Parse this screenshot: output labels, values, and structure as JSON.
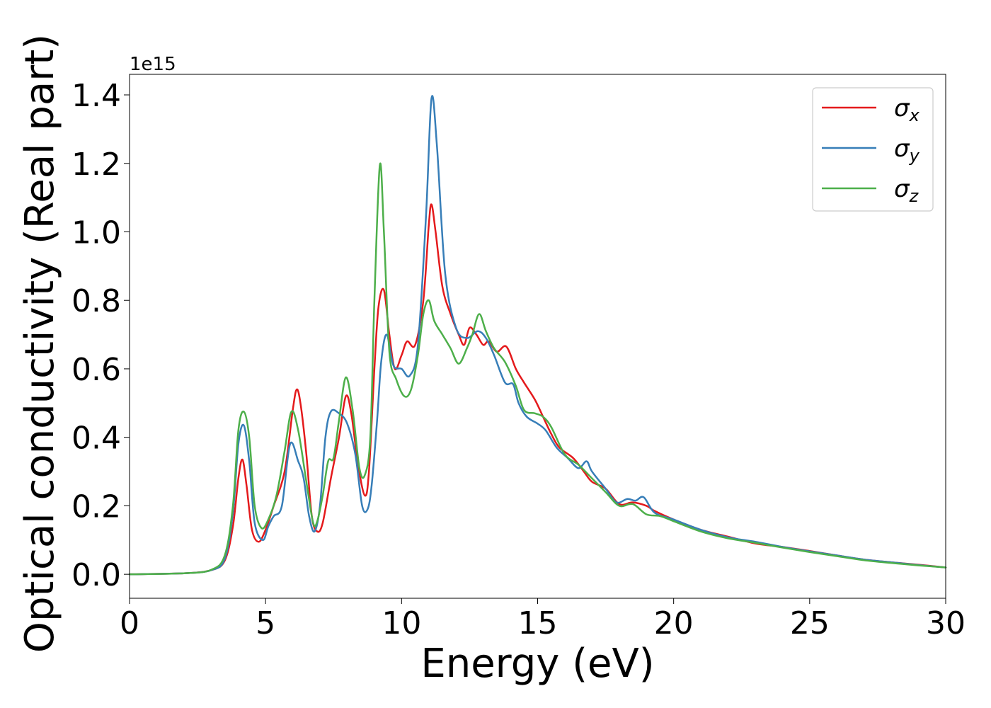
{
  "chart_data": {
    "type": "line",
    "xlabel": "Energy (eV)",
    "ylabel": "Optical conductivity (Real part)",
    "y_offset_label": "1e15",
    "xlim": [
      0,
      30
    ],
    "ylim": [
      -0.07,
      1.46
    ],
    "y_scale_factor": 1000000000000000.0,
    "xticks": [
      0,
      5,
      10,
      15,
      20,
      25,
      30
    ],
    "xtick_labels": [
      "0",
      "5",
      "10",
      "15",
      "20",
      "25",
      "30"
    ],
    "yticks": [
      0.0,
      0.2,
      0.4,
      0.6,
      0.8,
      1.0,
      1.2,
      1.4
    ],
    "ytick_labels": [
      "0.0",
      "0.2",
      "0.4",
      "0.6",
      "0.8",
      "1.0",
      "1.2",
      "1.4"
    ],
    "grid": false,
    "legend_position": "top-right",
    "series": [
      {
        "name": "σx",
        "legend_symbol": "σ",
        "legend_subscript": "x",
        "color": "#e41a1c",
        "points": [
          [
            0,
            0
          ],
          [
            2,
            0.003
          ],
          [
            3,
            0.012
          ],
          [
            3.5,
            0.04
          ],
          [
            3.8,
            0.14
          ],
          [
            4.0,
            0.28
          ],
          [
            4.15,
            0.335
          ],
          [
            4.3,
            0.26
          ],
          [
            4.5,
            0.13
          ],
          [
            4.75,
            0.095
          ],
          [
            5.0,
            0.13
          ],
          [
            5.3,
            0.2
          ],
          [
            5.7,
            0.3
          ],
          [
            6.0,
            0.48
          ],
          [
            6.15,
            0.54
          ],
          [
            6.3,
            0.49
          ],
          [
            6.5,
            0.35
          ],
          [
            6.7,
            0.17
          ],
          [
            6.9,
            0.125
          ],
          [
            7.1,
            0.15
          ],
          [
            7.4,
            0.28
          ],
          [
            7.7,
            0.4
          ],
          [
            7.95,
            0.52
          ],
          [
            8.15,
            0.47
          ],
          [
            8.4,
            0.32
          ],
          [
            8.65,
            0.23
          ],
          [
            8.8,
            0.3
          ],
          [
            9.0,
            0.6
          ],
          [
            9.15,
            0.78
          ],
          [
            9.35,
            0.83
          ],
          [
            9.55,
            0.7
          ],
          [
            9.75,
            0.6
          ],
          [
            10.0,
            0.64
          ],
          [
            10.2,
            0.68
          ],
          [
            10.5,
            0.67
          ],
          [
            10.8,
            0.8
          ],
          [
            11.0,
            1.02
          ],
          [
            11.1,
            1.08
          ],
          [
            11.25,
            1.0
          ],
          [
            11.5,
            0.84
          ],
          [
            11.8,
            0.76
          ],
          [
            12.1,
            0.7
          ],
          [
            12.3,
            0.67
          ],
          [
            12.5,
            0.72
          ],
          [
            12.75,
            0.7
          ],
          [
            13.0,
            0.67
          ],
          [
            13.2,
            0.68
          ],
          [
            13.5,
            0.65
          ],
          [
            13.85,
            0.665
          ],
          [
            14.2,
            0.6
          ],
          [
            14.5,
            0.56
          ],
          [
            14.9,
            0.51
          ],
          [
            15.2,
            0.46
          ],
          [
            15.5,
            0.41
          ],
          [
            15.8,
            0.37
          ],
          [
            16.3,
            0.34
          ],
          [
            16.7,
            0.3
          ],
          [
            17.0,
            0.27
          ],
          [
            17.5,
            0.25
          ],
          [
            18.0,
            0.205
          ],
          [
            18.5,
            0.21
          ],
          [
            19.0,
            0.2
          ],
          [
            19.3,
            0.185
          ],
          [
            20.0,
            0.16
          ],
          [
            21.0,
            0.13
          ],
          [
            22.0,
            0.11
          ],
          [
            23.0,
            0.09
          ],
          [
            24.0,
            0.08
          ],
          [
            25.0,
            0.068
          ],
          [
            26.0,
            0.055
          ],
          [
            27.0,
            0.043
          ],
          [
            28.0,
            0.035
          ],
          [
            29.0,
            0.028
          ],
          [
            30.0,
            0.02
          ]
        ]
      },
      {
        "name": "σy",
        "legend_symbol": "σ",
        "legend_subscript": "y",
        "color": "#377eb8",
        "points": [
          [
            0,
            0
          ],
          [
            2,
            0.003
          ],
          [
            3,
            0.012
          ],
          [
            3.5,
            0.045
          ],
          [
            3.8,
            0.18
          ],
          [
            4.0,
            0.38
          ],
          [
            4.2,
            0.435
          ],
          [
            4.4,
            0.33
          ],
          [
            4.6,
            0.15
          ],
          [
            4.9,
            0.1
          ],
          [
            5.1,
            0.14
          ],
          [
            5.3,
            0.17
          ],
          [
            5.6,
            0.2
          ],
          [
            5.9,
            0.38
          ],
          [
            6.2,
            0.33
          ],
          [
            6.4,
            0.28
          ],
          [
            6.6,
            0.17
          ],
          [
            6.8,
            0.125
          ],
          [
            7.0,
            0.2
          ],
          [
            7.2,
            0.4
          ],
          [
            7.4,
            0.475
          ],
          [
            7.7,
            0.47
          ],
          [
            8.0,
            0.44
          ],
          [
            8.3,
            0.35
          ],
          [
            8.55,
            0.2
          ],
          [
            8.75,
            0.19
          ],
          [
            8.9,
            0.26
          ],
          [
            9.1,
            0.45
          ],
          [
            9.25,
            0.62
          ],
          [
            9.45,
            0.7
          ],
          [
            9.7,
            0.61
          ],
          [
            10.0,
            0.6
          ],
          [
            10.3,
            0.58
          ],
          [
            10.6,
            0.67
          ],
          [
            10.9,
            1.05
          ],
          [
            11.1,
            1.39
          ],
          [
            11.3,
            1.25
          ],
          [
            11.6,
            0.88
          ],
          [
            12.0,
            0.72
          ],
          [
            12.4,
            0.69
          ],
          [
            12.8,
            0.71
          ],
          [
            13.1,
            0.69
          ],
          [
            13.4,
            0.64
          ],
          [
            13.8,
            0.56
          ],
          [
            14.1,
            0.555
          ],
          [
            14.3,
            0.5
          ],
          [
            14.6,
            0.46
          ],
          [
            15.0,
            0.44
          ],
          [
            15.3,
            0.42
          ],
          [
            15.7,
            0.37
          ],
          [
            16.1,
            0.34
          ],
          [
            16.5,
            0.31
          ],
          [
            16.8,
            0.33
          ],
          [
            17.0,
            0.3
          ],
          [
            17.5,
            0.25
          ],
          [
            17.9,
            0.21
          ],
          [
            18.3,
            0.22
          ],
          [
            18.6,
            0.215
          ],
          [
            18.9,
            0.225
          ],
          [
            19.3,
            0.18
          ],
          [
            20.0,
            0.16
          ],
          [
            21.0,
            0.13
          ],
          [
            22.0,
            0.108
          ],
          [
            23.0,
            0.095
          ],
          [
            24.0,
            0.08
          ],
          [
            25.0,
            0.067
          ],
          [
            26.0,
            0.055
          ],
          [
            27.0,
            0.043
          ],
          [
            28.0,
            0.035
          ],
          [
            29.0,
            0.027
          ],
          [
            30.0,
            0.02
          ]
        ]
      },
      {
        "name": "σz",
        "legend_symbol": "σ",
        "legend_subscript": "z",
        "color": "#4daf4a",
        "points": [
          [
            0,
            0
          ],
          [
            2,
            0.003
          ],
          [
            3,
            0.013
          ],
          [
            3.5,
            0.055
          ],
          [
            3.8,
            0.2
          ],
          [
            4.0,
            0.42
          ],
          [
            4.2,
            0.475
          ],
          [
            4.4,
            0.4
          ],
          [
            4.6,
            0.2
          ],
          [
            4.85,
            0.135
          ],
          [
            5.1,
            0.16
          ],
          [
            5.4,
            0.23
          ],
          [
            5.7,
            0.36
          ],
          [
            5.95,
            0.475
          ],
          [
            6.2,
            0.42
          ],
          [
            6.5,
            0.27
          ],
          [
            6.75,
            0.15
          ],
          [
            6.9,
            0.155
          ],
          [
            7.1,
            0.23
          ],
          [
            7.3,
            0.33
          ],
          [
            7.5,
            0.34
          ],
          [
            7.7,
            0.45
          ],
          [
            7.95,
            0.575
          ],
          [
            8.2,
            0.48
          ],
          [
            8.45,
            0.31
          ],
          [
            8.65,
            0.29
          ],
          [
            8.85,
            0.4
          ],
          [
            9.0,
            0.8
          ],
          [
            9.2,
            1.195
          ],
          [
            9.35,
            1.0
          ],
          [
            9.55,
            0.65
          ],
          [
            9.8,
            0.57
          ],
          [
            10.1,
            0.52
          ],
          [
            10.35,
            0.54
          ],
          [
            10.6,
            0.64
          ],
          [
            10.8,
            0.76
          ],
          [
            11.0,
            0.8
          ],
          [
            11.2,
            0.74
          ],
          [
            11.5,
            0.7
          ],
          [
            11.8,
            0.66
          ],
          [
            12.1,
            0.615
          ],
          [
            12.4,
            0.66
          ],
          [
            12.6,
            0.7
          ],
          [
            12.85,
            0.76
          ],
          [
            13.1,
            0.71
          ],
          [
            13.4,
            0.66
          ],
          [
            13.8,
            0.62
          ],
          [
            14.2,
            0.55
          ],
          [
            14.5,
            0.48
          ],
          [
            14.9,
            0.47
          ],
          [
            15.2,
            0.46
          ],
          [
            15.5,
            0.43
          ],
          [
            16.0,
            0.35
          ],
          [
            16.5,
            0.32
          ],
          [
            17.0,
            0.28
          ],
          [
            17.5,
            0.24
          ],
          [
            18.0,
            0.2
          ],
          [
            18.5,
            0.205
          ],
          [
            19.0,
            0.175
          ],
          [
            19.5,
            0.17
          ],
          [
            20.0,
            0.155
          ],
          [
            21.0,
            0.125
          ],
          [
            22.0,
            0.105
          ],
          [
            23.0,
            0.092
          ],
          [
            24.0,
            0.078
          ],
          [
            25.0,
            0.065
          ],
          [
            26.0,
            0.053
          ],
          [
            27.0,
            0.041
          ],
          [
            28.0,
            0.033
          ],
          [
            29.0,
            0.026
          ],
          [
            30.0,
            0.02
          ]
        ]
      }
    ]
  }
}
